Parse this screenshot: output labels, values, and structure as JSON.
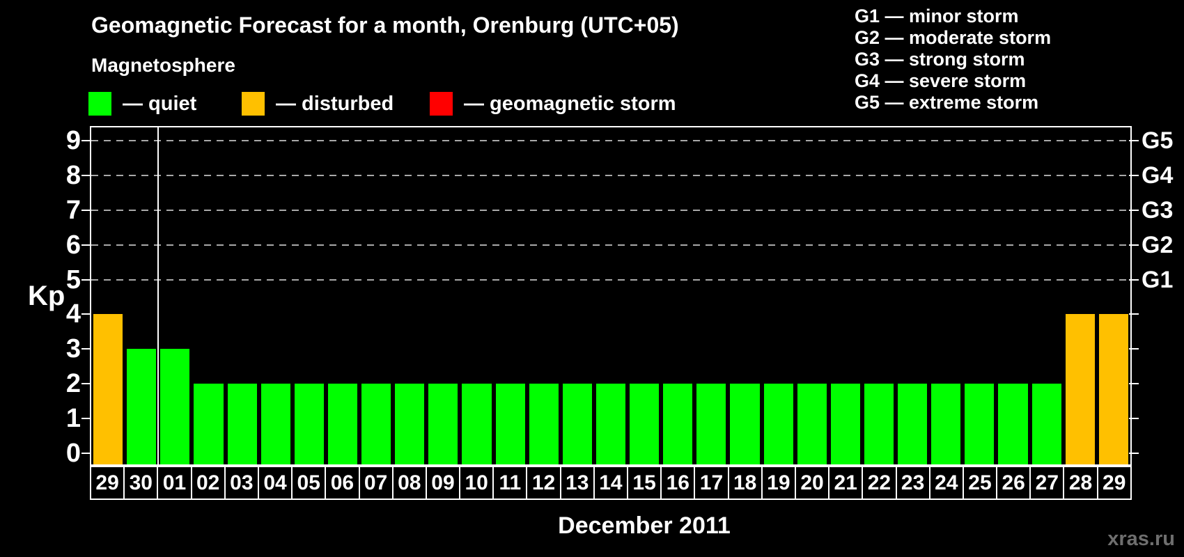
{
  "header": {
    "title": "Geomagnetic Forecast for a month, Orenburg (UTC+05)",
    "subtitle": "Magnetosphere"
  },
  "legend": {
    "items": [
      {
        "name": "quiet",
        "label": "— quiet",
        "color": "#00ff00"
      },
      {
        "name": "disturbed",
        "label": "— disturbed",
        "color": "#ffc000"
      },
      {
        "name": "storm",
        "label": "— geomagnetic storm",
        "color": "#ff0000"
      }
    ]
  },
  "storm_scale_legend": [
    "G1 — minor storm",
    "G2 — moderate storm",
    "G3 — strong storm",
    "G4 — severe storm",
    "G5 — extreme storm"
  ],
  "chart_data": {
    "type": "bar",
    "title": "Geomagnetic Forecast for a month, Orenburg (UTC+05)",
    "xlabel": "December 2011",
    "ylabel": "Kp",
    "ylim": [
      0,
      9
    ],
    "yticks": [
      0,
      1,
      2,
      3,
      4,
      5,
      6,
      7,
      8,
      9
    ],
    "gridlines_at": [
      5,
      6,
      7,
      8,
      9
    ],
    "grid": "dashed horizontal lines at storm levels only",
    "legend_position": "top",
    "right_axis": [
      {
        "label": "G1",
        "kp": 5
      },
      {
        "label": "G2",
        "kp": 6
      },
      {
        "label": "G3",
        "kp": 7
      },
      {
        "label": "G4",
        "kp": 8
      },
      {
        "label": "G5",
        "kp": 9
      }
    ],
    "categories": [
      "29",
      "30",
      "01",
      "02",
      "03",
      "04",
      "05",
      "06",
      "07",
      "08",
      "09",
      "10",
      "11",
      "12",
      "13",
      "14",
      "15",
      "16",
      "17",
      "18",
      "19",
      "20",
      "21",
      "22",
      "23",
      "24",
      "25",
      "26",
      "27",
      "28",
      "29"
    ],
    "values": [
      4,
      3,
      3,
      2,
      2,
      2,
      2,
      2,
      2,
      2,
      2,
      2,
      2,
      2,
      2,
      2,
      2,
      2,
      2,
      2,
      2,
      2,
      2,
      2,
      2,
      2,
      2,
      2,
      2,
      4,
      4
    ],
    "statuses": [
      "disturbed",
      "quiet",
      "quiet",
      "quiet",
      "quiet",
      "quiet",
      "quiet",
      "quiet",
      "quiet",
      "quiet",
      "quiet",
      "quiet",
      "quiet",
      "quiet",
      "quiet",
      "quiet",
      "quiet",
      "quiet",
      "quiet",
      "quiet",
      "quiet",
      "quiet",
      "quiet",
      "quiet",
      "quiet",
      "quiet",
      "quiet",
      "quiet",
      "quiet",
      "disturbed",
      "disturbed"
    ],
    "colors": {
      "quiet": "#00ff00",
      "disturbed": "#ffc000",
      "storm": "#ff0000"
    },
    "month_separator_after_index": 1
  },
  "footer": {
    "xaxis_title": "December 2011",
    "watermark": "xras.ru"
  }
}
